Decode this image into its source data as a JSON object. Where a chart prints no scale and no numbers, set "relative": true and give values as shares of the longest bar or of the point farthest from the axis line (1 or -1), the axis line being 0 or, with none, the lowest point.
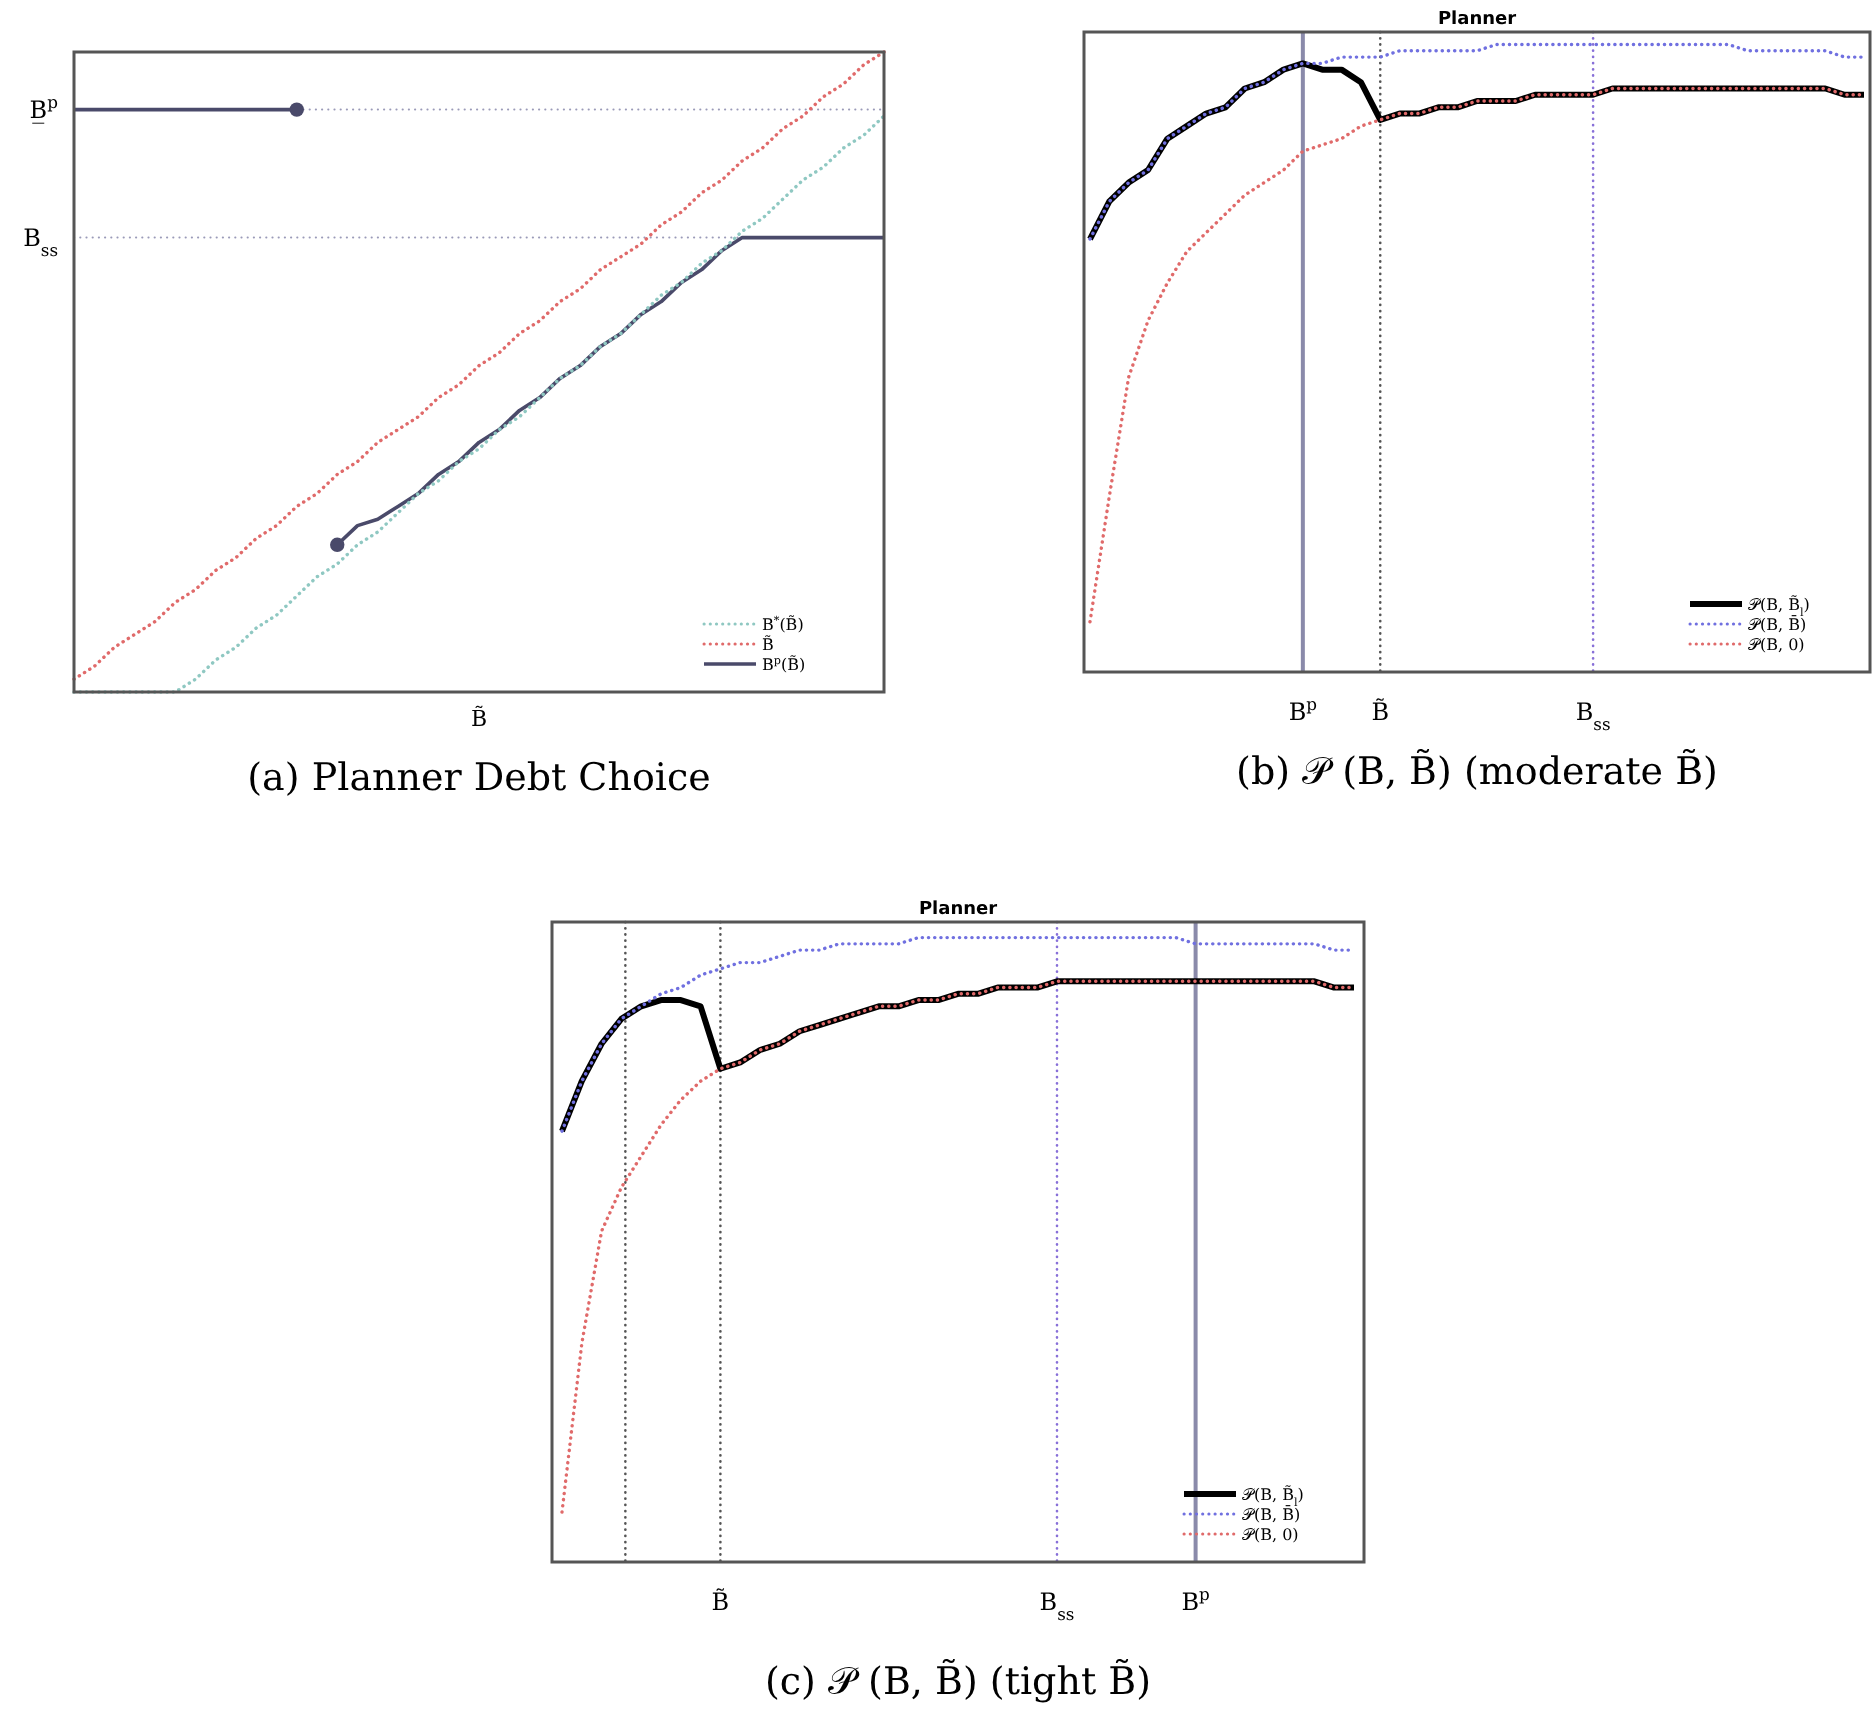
{
  "chart_data": [
    {
      "type": "line",
      "relative": true,
      "xlabel": "B̃",
      "legend": "bottom right",
      "categories": [
        null,
        null,
        null,
        null,
        null,
        null,
        null,
        null,
        null,
        null,
        null,
        null,
        null,
        null,
        null,
        null,
        null,
        null,
        null,
        null,
        null,
        null,
        null,
        null,
        null,
        null,
        null,
        null,
        null,
        null,
        null,
        null,
        null,
        null,
        null,
        null,
        null,
        null,
        null,
        null,
        null
      ],
      "series": [
        {
          "name": "B$^{*}$(B̃)",
          "color": "#8fc8c2",
          "line_style": "dotted",
          "values": [
            0,
            0,
            0,
            0,
            0,
            0,
            0.02,
            0.05,
            0.07,
            0.1,
            0.12,
            0.15,
            0.18,
            0.2,
            0.23,
            0.25,
            0.28,
            0.31,
            0.33,
            0.36,
            0.38,
            0.41,
            0.43,
            0.46,
            0.49,
            0.51,
            0.54,
            0.56,
            0.59,
            0.62,
            0.64,
            0.67,
            0.69,
            0.72,
            0.74,
            0.77,
            0.8,
            0.82,
            0.85,
            0.87,
            0.9
          ]
        },
        {
          "name": "B̃",
          "color": "#e06a6a",
          "line_style": "dotted",
          "values": [
            0.02,
            0.04,
            0.07,
            0.09,
            0.11,
            0.14,
            0.16,
            0.19,
            0.21,
            0.24,
            0.26,
            0.29,
            0.31,
            0.34,
            0.36,
            0.39,
            0.41,
            0.43,
            0.46,
            0.48,
            0.51,
            0.53,
            0.56,
            0.58,
            0.61,
            0.63,
            0.66,
            0.68,
            0.7,
            0.73,
            0.75,
            0.78,
            0.8,
            0.83,
            0.85,
            0.88,
            0.9,
            0.93,
            0.95,
            0.98,
            1.0
          ]
        },
        {
          "name": "B$^{p}$(B̃)",
          "color": "#4a4a6a",
          "line_style": "solid",
          "values": [
            0.91,
            0.91,
            0.91,
            0.91,
            0.91,
            0.91,
            0.91,
            0.91,
            0.91,
            0.91,
            0.91,
            0.91,
            null,
            0.23,
            0.26,
            0.27,
            0.29,
            0.31,
            0.34,
            0.36,
            0.39,
            0.41,
            0.44,
            0.46,
            0.49,
            0.51,
            0.54,
            0.56,
            0.59,
            0.61,
            0.64,
            0.66,
            0.69,
            0.71,
            0.71,
            0.71,
            0.71,
            0.71,
            0.71,
            0.71,
            0.71
          ]
        }
      ],
      "ref_lines": [
        {
          "axis": "y",
          "value": 0.91,
          "label": "B̲$^{p}$",
          "color": "#9a9ab8",
          "line_style": "dotted"
        },
        {
          "axis": "y",
          "value": 0.71,
          "label": "B$_{ss}$",
          "color": "#9a9ab8",
          "line_style": "dotted"
        }
      ],
      "annotations": [
        "(a) Planner Debt Choice"
      ]
    },
    {
      "type": "line",
      "relative": true,
      "title": "Planner",
      "legend": "bottom right",
      "categories": [
        null,
        null,
        null,
        null,
        null,
        null,
        null,
        null,
        null,
        null,
        null,
        "B$^{p}$",
        null,
        null,
        null,
        "B̃",
        null,
        null,
        null,
        null,
        null,
        null,
        null,
        null,
        null,
        null,
        "B$_{ss}$",
        null,
        null,
        null,
        null,
        null,
        null,
        null,
        null,
        null,
        null,
        null,
        null,
        null,
        null
      ],
      "series": [
        {
          "name": "𝒫(B, B̃$_{l}$)",
          "color": "#000000",
          "line_style": "solid",
          "values": [
            0.69,
            0.75,
            0.78,
            0.8,
            0.85,
            0.87,
            0.89,
            0.9,
            0.93,
            0.94,
            0.96,
            0.97,
            0.96,
            0.96,
            0.94,
            0.88,
            0.89,
            0.89,
            0.9,
            0.9,
            0.91,
            0.91,
            0.91,
            0.92,
            0.92,
            0.92,
            0.92,
            0.93,
            0.93,
            0.93,
            0.93,
            0.93,
            0.93,
            0.93,
            0.93,
            0.93,
            0.93,
            0.93,
            0.93,
            0.92,
            0.92
          ]
        },
        {
          "name": "𝒫(B, B̄)",
          "color": "#7070e0",
          "line_style": "dotted",
          "values": [
            0.69,
            0.75,
            0.78,
            0.8,
            0.85,
            0.87,
            0.89,
            0.9,
            0.93,
            0.94,
            0.96,
            0.97,
            0.97,
            0.98,
            0.98,
            0.98,
            0.99,
            0.99,
            0.99,
            0.99,
            0.99,
            1.0,
            1.0,
            1.0,
            1.0,
            1.0,
            1.0,
            1.0,
            1.0,
            1.0,
            1.0,
            1.0,
            1.0,
            1.0,
            0.99,
            0.99,
            0.99,
            0.99,
            0.99,
            0.98,
            0.98
          ]
        },
        {
          "name": "𝒫(B, 0)",
          "color": "#e06a6a",
          "line_style": "dotted",
          "values": [
            0.08,
            0.28,
            0.47,
            0.56,
            0.62,
            0.67,
            0.7,
            0.73,
            0.76,
            0.78,
            0.8,
            0.83,
            0.84,
            0.85,
            0.87,
            0.88,
            0.89,
            0.89,
            0.9,
            0.9,
            0.91,
            0.91,
            0.91,
            0.92,
            0.92,
            0.92,
            0.92,
            0.93,
            0.93,
            0.93,
            0.93,
            0.93,
            0.93,
            0.93,
            0.93,
            0.93,
            0.93,
            0.93,
            0.93,
            0.92,
            0.92
          ]
        }
      ],
      "ref_lines": [
        {
          "axis": "x",
          "value": "B$^{p}$",
          "color": "#8a8aaa",
          "line_style": "solid"
        },
        {
          "axis": "x",
          "value": "B̃",
          "color": "#555555",
          "line_style": "dotted"
        },
        {
          "axis": "x",
          "value": "B$_{ss}$",
          "color": "#8870d8",
          "line_style": "dotted"
        }
      ],
      "annotations": [
        "(b) 𝒫 (B, B̃) (moderate B̃)"
      ]
    },
    {
      "type": "line",
      "relative": true,
      "title": "Planner",
      "legend": "bottom right",
      "categories": [
        null,
        null,
        null,
        null,
        null,
        null,
        null,
        null,
        "B̃",
        null,
        null,
        null,
        null,
        null,
        null,
        null,
        null,
        null,
        null,
        null,
        null,
        null,
        null,
        null,
        null,
        "B$_{ss}$",
        null,
        null,
        null,
        null,
        null,
        null,
        "B$^{p}$",
        null,
        null,
        null,
        null,
        null,
        null,
        null,
        null
      ],
      "series": [
        {
          "name": "𝒫(B, B̃$_{l}$)",
          "color": "#000000",
          "line_style": "solid",
          "values": [
            0.69,
            0.77,
            0.83,
            0.87,
            0.89,
            0.9,
            0.9,
            0.89,
            0.79,
            0.8,
            0.82,
            0.83,
            0.85,
            0.86,
            0.87,
            0.88,
            0.89,
            0.89,
            0.9,
            0.9,
            0.91,
            0.91,
            0.92,
            0.92,
            0.92,
            0.93,
            0.93,
            0.93,
            0.93,
            0.93,
            0.93,
            0.93,
            0.93,
            0.93,
            0.93,
            0.93,
            0.93,
            0.93,
            0.93,
            0.92,
            0.92
          ]
        },
        {
          "name": "𝒫(B, B̄)",
          "color": "#7070e0",
          "line_style": "dotted",
          "values": [
            0.69,
            0.77,
            0.83,
            0.87,
            0.89,
            0.91,
            0.92,
            0.94,
            0.95,
            0.96,
            0.96,
            0.97,
            0.98,
            0.98,
            0.99,
            0.99,
            0.99,
            0.99,
            1.0,
            1.0,
            1.0,
            1.0,
            1.0,
            1.0,
            1.0,
            1.0,
            1.0,
            1.0,
            1.0,
            1.0,
            1.0,
            1.0,
            0.99,
            0.99,
            0.99,
            0.99,
            0.99,
            0.99,
            0.99,
            0.98,
            0.98
          ]
        },
        {
          "name": "𝒫(B, 0)",
          "color": "#e06a6a",
          "line_style": "dotted",
          "values": [
            0.08,
            0.35,
            0.53,
            0.6,
            0.65,
            0.7,
            0.74,
            0.77,
            0.79,
            0.8,
            0.82,
            0.83,
            0.85,
            0.86,
            0.87,
            0.88,
            0.89,
            0.89,
            0.9,
            0.9,
            0.91,
            0.91,
            0.92,
            0.92,
            0.92,
            0.93,
            0.93,
            0.93,
            0.93,
            0.93,
            0.93,
            0.93,
            0.93,
            0.93,
            0.93,
            0.93,
            0.93,
            0.93,
            0.93,
            0.92,
            0.92
          ]
        }
      ],
      "ref_lines": [
        {
          "axis": "x",
          "value": "B̃",
          "color": "#555555",
          "line_style": "dotted"
        },
        {
          "axis": "x",
          "value": "B$_{ss}$",
          "color": "#8870d8",
          "line_style": "dotted"
        },
        {
          "axis": "x",
          "value": "B$^{p}$",
          "color": "#8a8aaa",
          "line_style": "solid"
        }
      ],
      "annotations": [
        "(c) 𝒫 (B, B̃) (tight B̃)"
      ]
    }
  ]
}
